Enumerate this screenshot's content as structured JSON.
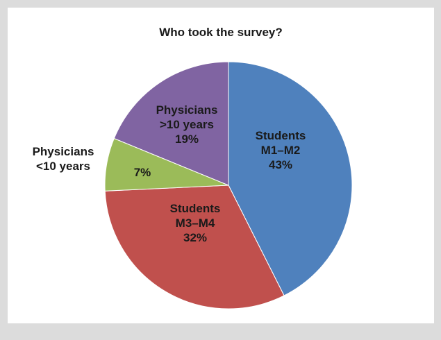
{
  "chart_data": {
    "type": "pie",
    "title": "Who took the survey?",
    "slices": [
      {
        "label_lines": [
          "Students",
          "M1–M2"
        ],
        "value": 43,
        "value_label": "43%",
        "color": "#4f81bd"
      },
      {
        "label_lines": [
          "Students",
          "M3–M4"
        ],
        "value": 32,
        "value_label": "32%",
        "color": "#c0504d"
      },
      {
        "label_lines": [
          "Physicians",
          "<10 years"
        ],
        "value": 7,
        "value_label": "7%",
        "color": "#9bbb59"
      },
      {
        "label_lines": [
          "Physicians",
          ">10 years"
        ],
        "value": 19,
        "value_label": "19%",
        "color": "#8064a2"
      }
    ],
    "start": "top",
    "direction": "clockwise",
    "legend": "none"
  }
}
